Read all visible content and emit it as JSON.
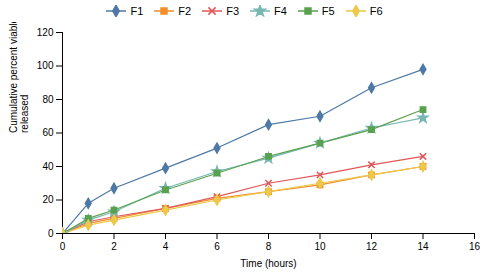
{
  "chart_data": {
    "type": "line",
    "xlabel": "Time (hours)",
    "ylabel": "Cumulative percent viable L. rhamnosus\nreleased",
    "x": [
      0,
      1,
      2,
      4,
      6,
      8,
      10,
      12,
      14
    ],
    "series": [
      {
        "name": "F1",
        "marker": "diamond",
        "values": [
          0,
          18,
          27,
          39,
          51,
          65,
          70,
          87,
          98
        ],
        "errors": [
          0,
          0.5,
          0.5,
          0.7,
          0.8,
          1.0,
          1.0,
          0.8,
          1.0
        ]
      },
      {
        "name": "F2",
        "marker": "square",
        "values": [
          0,
          6,
          9,
          15,
          21,
          25,
          29,
          35,
          40
        ],
        "errors": [
          0,
          0.3,
          0.3,
          0.5,
          0.5,
          0.5,
          0.5,
          0.6,
          0.6
        ]
      },
      {
        "name": "F3",
        "marker": "x",
        "values": [
          0,
          7,
          10,
          15,
          22,
          30,
          35,
          41,
          46
        ],
        "errors": [
          0,
          0.3,
          0.3,
          0.6,
          0.6,
          0.6,
          0.6,
          0.7,
          0.7
        ]
      },
      {
        "name": "F4",
        "marker": "star",
        "values": [
          0,
          8,
          13,
          27,
          37,
          45,
          54,
          63,
          69
        ],
        "errors": [
          0,
          0.4,
          0.4,
          0.7,
          0.7,
          0.8,
          0.8,
          0.9,
          0.9
        ]
      },
      {
        "name": "F5",
        "marker": "square",
        "values": [
          0,
          9,
          14,
          26,
          36,
          46,
          54,
          62,
          74
        ],
        "errors": [
          0,
          0.4,
          0.4,
          0.7,
          0.8,
          0.9,
          0.9,
          1.0,
          1.0
        ]
      },
      {
        "name": "F6",
        "marker": "diamond",
        "values": [
          0,
          5,
          8,
          14,
          20,
          25,
          30,
          35,
          40
        ],
        "errors": [
          0,
          0.3,
          0.3,
          0.4,
          0.5,
          0.5,
          0.5,
          0.5,
          0.6
        ]
      }
    ],
    "xlim": [
      0,
      16
    ],
    "ylim": [
      0,
      120
    ],
    "xticks": [
      0,
      2,
      4,
      6,
      8,
      10,
      12,
      14,
      16
    ],
    "yticks": [
      0,
      20,
      40,
      60,
      80,
      100,
      120
    ],
    "grid": false,
    "legend": "top"
  }
}
